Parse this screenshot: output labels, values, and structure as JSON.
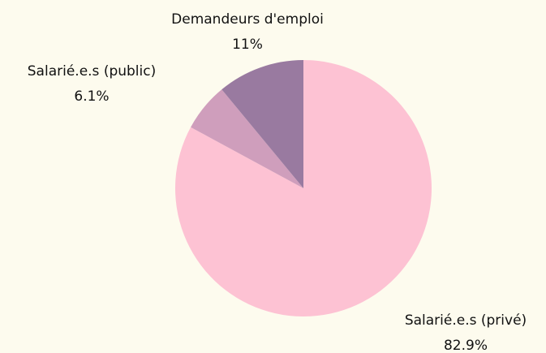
{
  "chart_data": {
    "type": "pie",
    "categories": [
      "Salarié.e.s (privé)",
      "Salarié.e.s (public)",
      "Demandeurs d'emploi"
    ],
    "values": [
      82.9,
      6.1,
      11
    ],
    "value_labels": [
      "82.9%",
      "6.1%",
      "11%"
    ],
    "colors": [
      "#fdc2d3",
      "#cf9ebc",
      "#997aa0"
    ]
  }
}
